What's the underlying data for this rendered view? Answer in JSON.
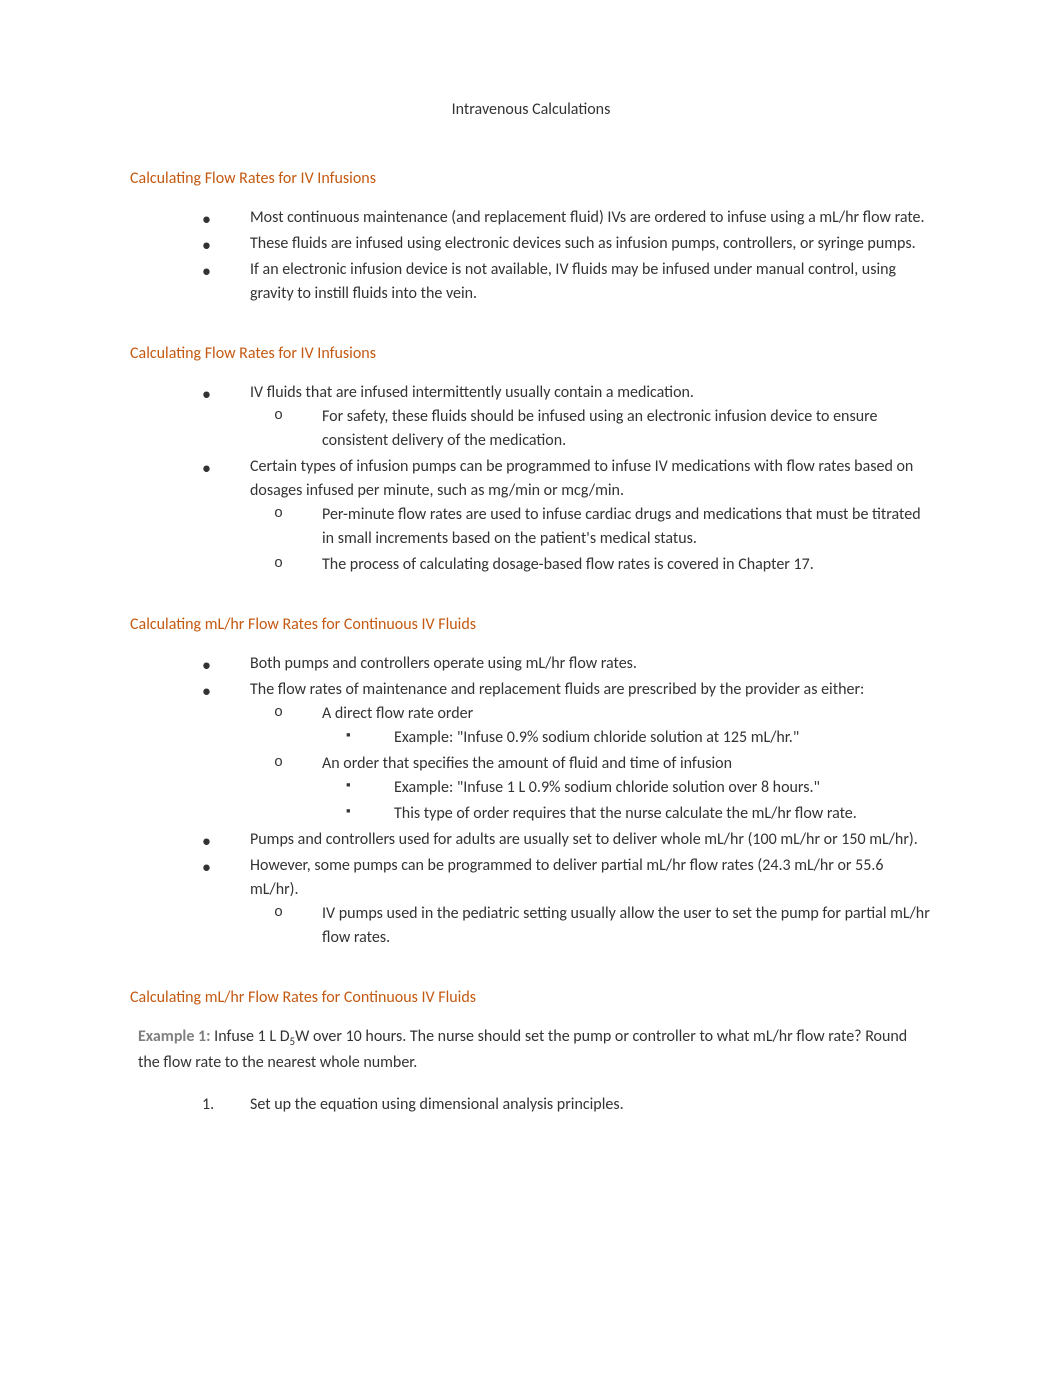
{
  "colors": {
    "heading": "#c45911",
    "body": "#333333",
    "example_label": "#808080",
    "background": "#ffffff"
  },
  "typography": {
    "body_fontsize": 16,
    "heading_fontsize": 16,
    "line_height": 1.5,
    "font_family": "Calibri"
  },
  "doc_title": "Intravenous Calculations",
  "sections": {
    "s1": {
      "heading": "Calculating Flow Rates for IV Infusions",
      "b1": "Most continuous maintenance (and replacement fluid) IVs are ordered to infuse using a mL/hr flow rate.",
      "b2": "These fluids are infused using electronic devices such as infusion pumps, controllers, or syringe pumps.",
      "b3": "If an electronic infusion device is not available, IV fluids may be infused under manual control, using gravity to instill fluids into the vein."
    },
    "s2": {
      "heading": "Calculating Flow Rates for IV Infusions",
      "b1": "IV fluids that are infused intermittently usually contain a medication.",
      "b1s1": "For safety, these fluids should be infused using an electronic infusion device to ensure consistent delivery of the medication.",
      "b2": "Certain types of infusion pumps can be programmed to infuse IV medications with flow rates based on dosages infused per minute, such as mg/min or mcg/min.",
      "b2s1": "Per-minute flow rates are used to infuse cardiac drugs and medications that must be titrated in small increments based on the patient's medical status.",
      "b2s2": "The process of calculating dosage-based flow rates is covered in Chapter 17."
    },
    "s3": {
      "heading": "Calculating mL/hr Flow Rates for Continuous IV Fluids",
      "b1": "Both pumps and controllers operate using mL/hr flow rates.",
      "b2": "The flow rates of maintenance and replacement fluids are prescribed by the provider as either:",
      "b2s1": "A direct flow rate order",
      "b2s1a": "Example: \"Infuse 0.9% sodium chloride solution at 125 mL/hr.\"",
      "b2s2": "An order that specifies the amount of fluid and time of infusion",
      "b2s2a": "Example: \"Infuse 1 L 0.9% sodium chloride solution over 8 hours.\"",
      "b2s2b": "This type of order requires that the nurse calculate the mL/hr flow rate.",
      "b3": "Pumps and controllers used for adults are usually set to deliver whole mL/hr (100 mL/hr or 150 mL/hr).",
      "b4": "However, some pumps can be programmed to deliver partial mL/hr flow rates (24.3 mL/hr or 55.6 mL/hr).",
      "b4s1": "IV pumps used in the pediatric setting usually allow the user to set the pump for partial mL/hr flow rates."
    },
    "s4": {
      "heading": "Calculating mL/hr Flow Rates for Continuous IV Fluids",
      "example_label": "Example 1: ",
      "example_pre": "Infuse 1 L D",
      "example_sub": "5",
      "example_post": "W over 10 hours. The nurse should set the pump or controller to what mL/hr flow rate? Round the flow rate to the nearest whole number.",
      "n1_num": "1.",
      "n1": "Set up the equation using dimensional analysis principles."
    }
  }
}
